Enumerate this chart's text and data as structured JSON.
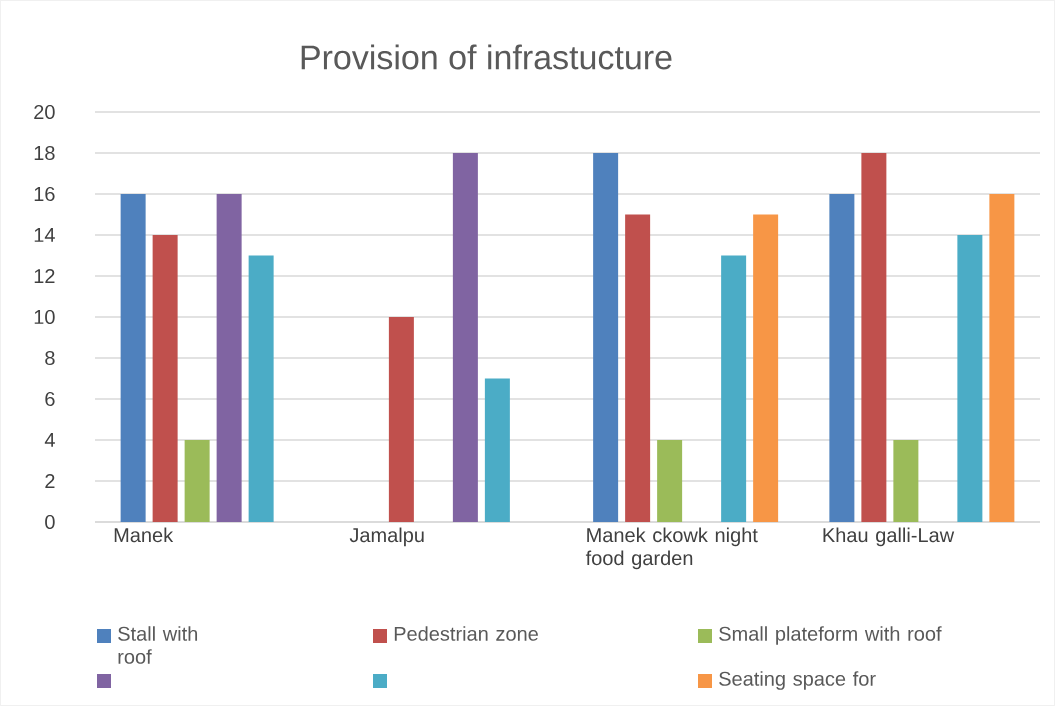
{
  "chart_data": {
    "type": "bar",
    "title": "Provision of infrastucture",
    "categories": [
      "Manek",
      "Jamalpu",
      "Manek ckowk night food garden",
      "Khau galli-Law"
    ],
    "series": [
      {
        "name": "Stall with roof",
        "color": "#4f81bd",
        "values": [
          16,
          null,
          18,
          16
        ]
      },
      {
        "name": "Pedestrian zone",
        "color": "#c0504d",
        "values": [
          14,
          10,
          15,
          18
        ]
      },
      {
        "name": "Small plateform with roof",
        "color": "#9bbb59",
        "values": [
          4,
          null,
          4,
          4
        ]
      },
      {
        "color": "#8064a2",
        "values": [
          16,
          18,
          null,
          null
        ]
      },
      {
        "color": "#4bacc6",
        "values": [
          13,
          7,
          13,
          14
        ]
      },
      {
        "name": "Seating space for",
        "color": "#f79646",
        "values": [
          null,
          null,
          15,
          16
        ]
      }
    ],
    "ylim": [
      0,
      20
    ],
    "yticks": [
      0,
      2,
      4,
      6,
      8,
      10,
      12,
      14,
      16,
      18,
      20
    ],
    "grid": "y",
    "legend": "bottom"
  }
}
